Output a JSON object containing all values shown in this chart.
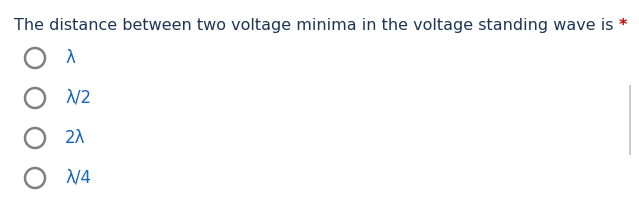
{
  "question": "The distance between two voltage minima in the voltage standing wave is ",
  "asterisk": "*",
  "options": [
    "λ",
    "λ/2",
    "2λ",
    "λ/4"
  ],
  "bg_color": "#ffffff",
  "question_color": "#1c3557",
  "asterisk_color": "#cc0000",
  "option_color": "#1565c0",
  "circle_edge_color": "#808080",
  "divider_color": "#c0c0c0",
  "question_fontsize": 11.5,
  "option_fontsize": 12.0,
  "figsize": [
    6.39,
    2.11
  ],
  "dpi": 100
}
